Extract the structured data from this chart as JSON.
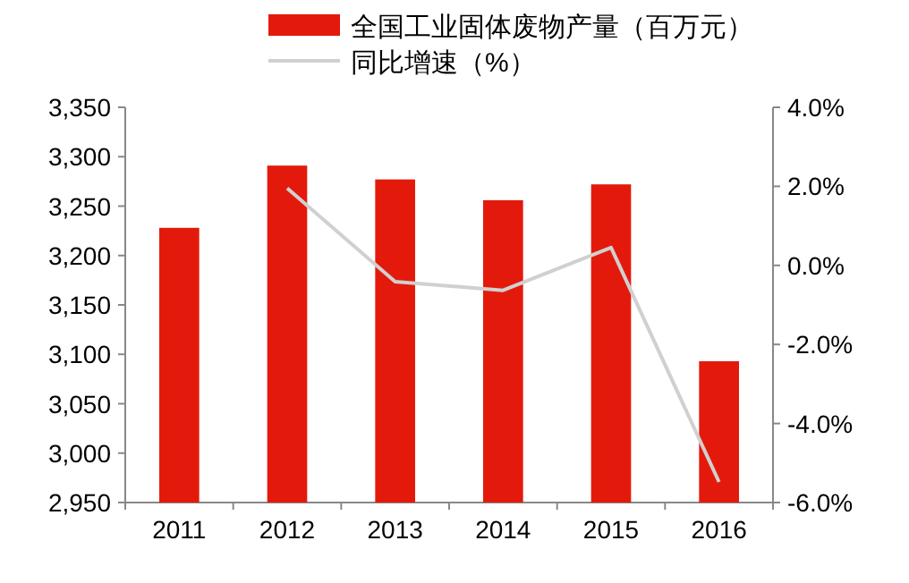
{
  "chart_data": {
    "type": "bar",
    "categories": [
      "2011",
      "2012",
      "2013",
      "2014",
      "2015",
      "2016"
    ],
    "series": [
      {
        "name": "全国工业固体废物产量（百万元）",
        "color": "#e31a0b",
        "values": [
          3228,
          3291,
          3277,
          3256,
          3272,
          3093
        ]
      },
      {
        "name": "同比增速（%）",
        "type": "line",
        "axis": "y2",
        "color": "#d0d0d0",
        "values": [
          null,
          1.95,
          -0.41,
          -0.63,
          0.45,
          -5.48
        ]
      }
    ],
    "ylim": [
      2950,
      3350
    ],
    "yticks": [
      {
        "value": 2950,
        "label": "2,950"
      },
      {
        "value": 3000,
        "label": "3,000"
      },
      {
        "value": 3050,
        "label": "3,050"
      },
      {
        "value": 3100,
        "label": "3,100"
      },
      {
        "value": 3150,
        "label": "3,150"
      },
      {
        "value": 3200,
        "label": "3,200"
      },
      {
        "value": 3250,
        "label": "3,250"
      },
      {
        "value": 3300,
        "label": "3,300"
      },
      {
        "value": 3350,
        "label": "3,350"
      }
    ],
    "y2lim": [
      -6,
      4
    ],
    "y2ticks": [
      {
        "value": -6,
        "label": "-6.0%"
      },
      {
        "value": -4,
        "label": "-4.0%"
      },
      {
        "value": -2,
        "label": "-2.0%"
      },
      {
        "value": 0,
        "label": "0.0%"
      },
      {
        "value": 2,
        "label": "2.0%"
      },
      {
        "value": 4,
        "label": "4.0%"
      }
    ],
    "legend": "top",
    "grid": false
  }
}
